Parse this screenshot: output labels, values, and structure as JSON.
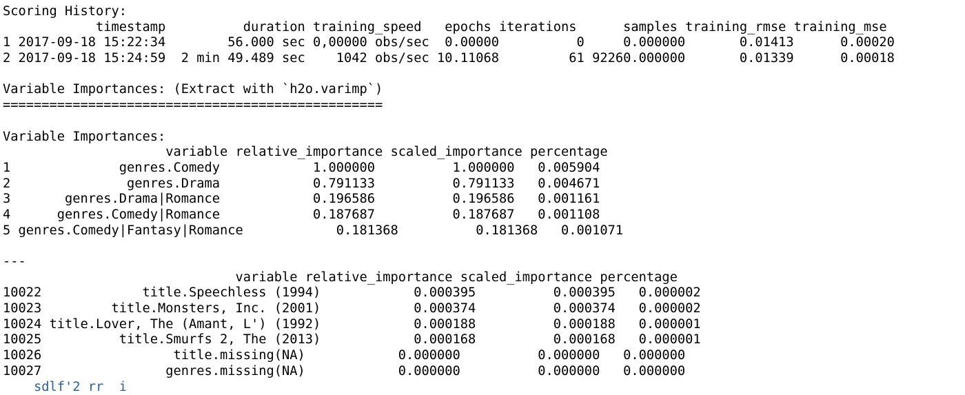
{
  "console": {
    "lines": [
      "Scoring History: ",
      "            timestamp          duration training_speed   epochs iterations      samples training_rmse training_mse",
      "1 2017-09-18 15:22:34        56.000 sec 0,00000 obs/sec  0.00000          0     0.000000       0.01413      0.00020",
      "2 2017-09-18 15:24:59  2 min 49.489 sec    1042 obs/sec 10.11068         61 92260.000000       0.01339      0.00018",
      "",
      "Variable Importances: (Extract with `h2o.varimp`) ",
      "=================================================",
      "",
      "Variable Importances: ",
      "                     variable relative_importance scaled_importance percentage",
      "1              genres.Comedy            1.000000          1.000000   0.005904",
      "2               genres.Drama            0.791133          0.791133   0.004671",
      "3       genres.Drama|Romance            0.196586          0.196586   0.001161",
      "4      genres.Comedy|Romance            0.187687          0.187687   0.001108",
      "5 genres.Comedy|Fantasy|Romance            0.181368          0.181368   0.001071",
      "",
      "---",
      "                              variable relative_importance scaled_importance percentage",
      "10022             title.Speechless (1994)            0.000395          0.000395   0.000002",
      "10023         title.Monsters, Inc. (2001)            0.000374          0.000374   0.000002",
      "10024 title.Lover, The (Amant, L') (1992)            0.000188          0.000188   0.000001",
      "10025          title.Smurfs 2, The (2013)            0.000168          0.000168   0.000001",
      "10026                 title.missing(NA)            0.000000          0.000000   0.000000",
      "10027                genres.missing(NA)            0.000000          0.000000   0.000000"
    ],
    "partial_prompt": "    sdlf'2 rr  i"
  },
  "colors": {
    "background": "#ffffff",
    "text": "#000000",
    "prompt": "#2a5db0"
  }
}
